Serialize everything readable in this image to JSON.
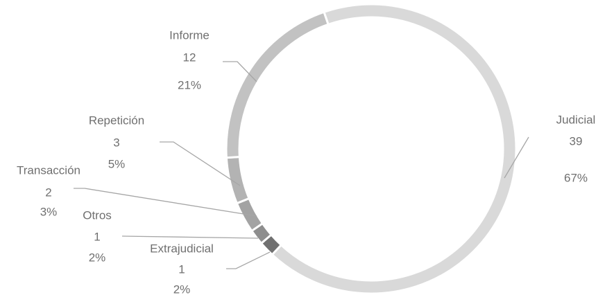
{
  "chart_data": {
    "type": "donut",
    "categories": [
      "Judicial",
      "Extrajudicial",
      "Otros",
      "Transacción",
      "Repetición",
      "Informe"
    ],
    "values": [
      39,
      1,
      1,
      2,
      3,
      12
    ],
    "percent_labels": [
      "67%",
      "2%",
      "2%",
      "3%",
      "5%",
      "21%"
    ],
    "colors": [
      "#d9d9d9",
      "#707070",
      "#8e8e8e",
      "#a3a3a3",
      "#b3b3b3",
      "#c2c2c2"
    ]
  }
}
